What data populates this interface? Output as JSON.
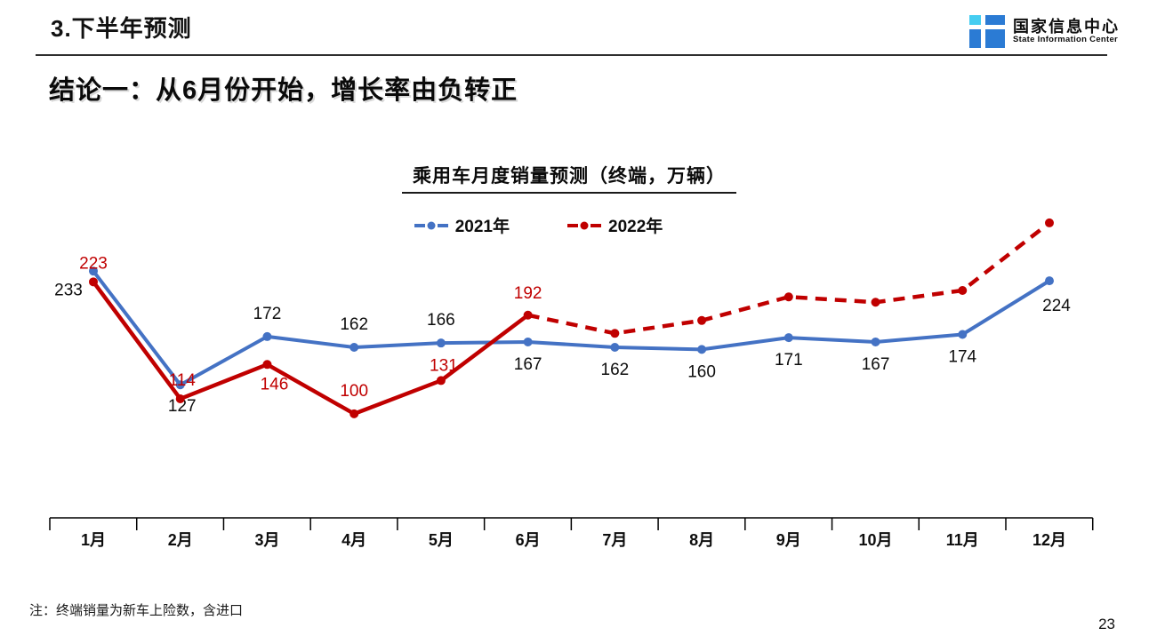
{
  "header": {
    "title": "3.下半年预测",
    "logo": {
      "name_cn": "国家信息中心",
      "name_en": "State Information Center",
      "icon_colors": {
        "cyan": "#45cdf1",
        "blue": "#2b7bd4"
      }
    }
  },
  "headline": "结论一：从6月份开始，增长率由负转正",
  "note": "注：终端销量为新车上险数，含进口",
  "page_number": "23",
  "chart_data": {
    "type": "line",
    "title": "乘用车月度销量预测（终端，万辆）",
    "categories": [
      "1月",
      "2月",
      "3月",
      "4月",
      "5月",
      "6月",
      "7月",
      "8月",
      "9月",
      "10月",
      "11月",
      "12月"
    ],
    "legend_position": "top",
    "grid": false,
    "y_axis_visible": false,
    "ylim": [
      0,
      290
    ],
    "axis_color": "#000000",
    "label_text_color": "#0d0d0d",
    "series": [
      {
        "name": "2021年",
        "color": "#4472C4",
        "label_color": "#0d0d0d",
        "line_style": "solid",
        "values": [
          233,
          127,
          172,
          162,
          166,
          167,
          162,
          160,
          171,
          167,
          174,
          224
        ],
        "point_labels": [
          "233",
          "127",
          "172",
          "162",
          "166",
          "167",
          "162",
          "160",
          "171",
          "167",
          "174",
          "224"
        ],
        "label_offsets": [
          [
            -28,
            21
          ],
          [
            2,
            24
          ],
          [
            0,
            -26
          ],
          [
            0,
            -26
          ],
          [
            0,
            -26
          ],
          [
            0,
            25
          ],
          [
            0,
            25
          ],
          [
            0,
            25
          ],
          [
            0,
            25
          ],
          [
            0,
            25
          ],
          [
            0,
            25
          ],
          [
            8,
            28
          ]
        ]
      },
      {
        "name": "2022年",
        "color": "#C00000",
        "label_color": "#C00000",
        "line_style": "solid_through_june_then_dashed_forecast",
        "dashed_from_index": 5,
        "values": [
          223,
          114,
          146,
          100,
          131,
          192,
          175,
          187,
          209,
          204,
          215,
          278
        ],
        "point_labels": [
          "223",
          "114",
          "146",
          "100",
          "131",
          "192",
          null,
          null,
          null,
          null,
          null,
          null
        ],
        "label_offsets": [
          [
            0,
            -21
          ],
          [
            2,
            -21
          ],
          [
            8,
            22
          ],
          [
            0,
            -26
          ],
          [
            3,
            -17
          ],
          [
            0,
            -25
          ],
          null,
          null,
          null,
          null,
          null,
          null
        ]
      }
    ]
  }
}
